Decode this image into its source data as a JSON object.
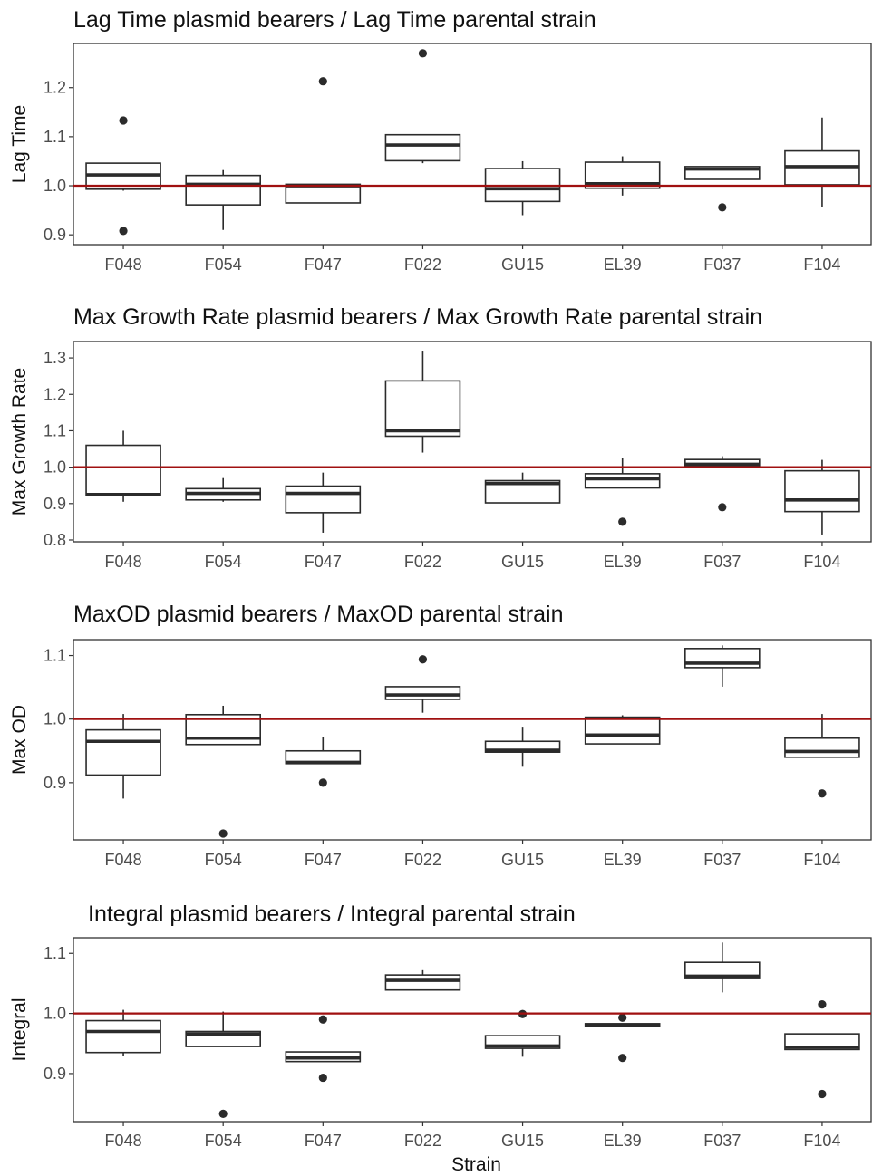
{
  "chart_data": [
    {
      "type": "box",
      "title": "Lag Time plasmid bearers / Lag Time parental strain",
      "ylabel": "Lag Time",
      "xlabel": "",
      "ylim": [
        0.88,
        1.29
      ],
      "yticks": [
        0.9,
        1.0,
        1.1,
        1.2
      ],
      "yticklabels": [
        "0.9",
        "1.0",
        "1.1",
        "1.2"
      ],
      "reference_line": 1.0,
      "categories": [
        "F048",
        "F054",
        "F047",
        "F022",
        "GU15",
        "EL39",
        "F037",
        "F104"
      ],
      "boxes": [
        {
          "wlo": 0.99,
          "q1": 0.993,
          "med": 1.022,
          "q3": 1.046,
          "whi": 1.046,
          "outliers": [
            1.133,
            0.908
          ]
        },
        {
          "wlo": 0.91,
          "q1": 0.961,
          "med": 1.003,
          "q3": 1.021,
          "whi": 1.032,
          "outliers": []
        },
        {
          "wlo": 0.965,
          "q1": 0.965,
          "med": 1.0,
          "q3": 1.003,
          "whi": 1.003,
          "outliers": [
            1.213
          ]
        },
        {
          "wlo": 1.046,
          "q1": 1.051,
          "med": 1.083,
          "q3": 1.104,
          "whi": 1.104,
          "outliers": [
            1.27
          ]
        },
        {
          "wlo": 0.94,
          "q1": 0.968,
          "med": 0.994,
          "q3": 1.035,
          "whi": 1.05,
          "outliers": []
        },
        {
          "wlo": 0.98,
          "q1": 0.995,
          "med": 1.004,
          "q3": 1.048,
          "whi": 1.06,
          "outliers": []
        },
        {
          "wlo": 1.013,
          "q1": 1.013,
          "med": 1.034,
          "q3": 1.039,
          "whi": 1.039,
          "outliers": [
            0.956
          ]
        },
        {
          "wlo": 0.957,
          "q1": 1.002,
          "med": 1.039,
          "q3": 1.071,
          "whi": 1.139,
          "outliers": []
        }
      ]
    },
    {
      "type": "box",
      "title": "Max Growth Rate plasmid bearers / Max Growth Rate parental strain",
      "ylabel": "Max Growth Rate",
      "xlabel": "",
      "ylim": [
        0.795,
        1.345
      ],
      "yticks": [
        0.8,
        0.9,
        1.0,
        1.1,
        1.2,
        1.3
      ],
      "yticklabels": [
        "0.8",
        "0.9",
        "1.0",
        "1.1",
        "1.2",
        "1.3"
      ],
      "reference_line": 1.0,
      "categories": [
        "F048",
        "F054",
        "F047",
        "F022",
        "GU15",
        "EL39",
        "F037",
        "F104"
      ],
      "boxes": [
        {
          "wlo": 0.905,
          "q1": 0.922,
          "med": 0.925,
          "q3": 1.06,
          "whi": 1.1,
          "outliers": []
        },
        {
          "wlo": 0.905,
          "q1": 0.91,
          "med": 0.928,
          "q3": 0.941,
          "whi": 0.97,
          "outliers": []
        },
        {
          "wlo": 0.82,
          "q1": 0.875,
          "med": 0.928,
          "q3": 0.948,
          "whi": 0.985,
          "outliers": []
        },
        {
          "wlo": 1.04,
          "q1": 1.085,
          "med": 1.1,
          "q3": 1.237,
          "whi": 1.32,
          "outliers": []
        },
        {
          "wlo": 0.902,
          "q1": 0.902,
          "med": 0.955,
          "q3": 0.963,
          "whi": 0.985,
          "outliers": []
        },
        {
          "wlo": 0.943,
          "q1": 0.943,
          "med": 0.968,
          "q3": 0.982,
          "whi": 1.025,
          "outliers": [
            0.85
          ]
        },
        {
          "wlo": 1.0,
          "q1": 1.002,
          "med": 1.008,
          "q3": 1.021,
          "whi": 1.03,
          "outliers": [
            0.89
          ]
        },
        {
          "wlo": 0.815,
          "q1": 0.878,
          "med": 0.91,
          "q3": 0.99,
          "whi": 1.02,
          "outliers": []
        }
      ]
    },
    {
      "type": "box",
      "title": "MaxOD plasmid bearers / MaxOD parental strain",
      "ylabel": "Max OD",
      "xlabel": "",
      "ylim": [
        0.81,
        1.125
      ],
      "yticks": [
        0.9,
        1.0,
        1.1
      ],
      "yticklabels": [
        "0.9",
        "1.0",
        "1.1"
      ],
      "reference_line": 1.0,
      "categories": [
        "F048",
        "F054",
        "F047",
        "F022",
        "GU15",
        "EL39",
        "F037",
        "F104"
      ],
      "boxes": [
        {
          "wlo": 0.875,
          "q1": 0.912,
          "med": 0.965,
          "q3": 0.983,
          "whi": 1.008,
          "outliers": []
        },
        {
          "wlo": 0.96,
          "q1": 0.96,
          "med": 0.97,
          "q3": 1.007,
          "whi": 1.021,
          "outliers": [
            0.82
          ]
        },
        {
          "wlo": 0.93,
          "q1": 0.93,
          "med": 0.932,
          "q3": 0.95,
          "whi": 0.972,
          "outliers": [
            0.9
          ]
        },
        {
          "wlo": 1.01,
          "q1": 1.031,
          "med": 1.038,
          "q3": 1.051,
          "whi": 1.051,
          "outliers": [
            1.094
          ]
        },
        {
          "wlo": 0.925,
          "q1": 0.948,
          "med": 0.951,
          "q3": 0.965,
          "whi": 0.988,
          "outliers": []
        },
        {
          "wlo": 0.961,
          "q1": 0.961,
          "med": 0.975,
          "q3": 1.003,
          "whi": 1.006,
          "outliers": []
        },
        {
          "wlo": 1.051,
          "q1": 1.081,
          "med": 1.088,
          "q3": 1.111,
          "whi": 1.116,
          "outliers": []
        },
        {
          "wlo": 0.94,
          "q1": 0.94,
          "med": 0.949,
          "q3": 0.97,
          "whi": 1.008,
          "outliers": [
            0.883
          ]
        }
      ]
    },
    {
      "type": "box",
      "title": "Integral plasmid bearers / Integral parental strain",
      "ylabel": "Integral",
      "xlabel": "Strain",
      "ylim": [
        0.82,
        1.126
      ],
      "yticks": [
        0.9,
        1.0,
        1.1
      ],
      "yticklabels": [
        "0.9",
        "1.0",
        "1.1"
      ],
      "reference_line": 1.0,
      "categories": [
        "F048",
        "F054",
        "F047",
        "F022",
        "GU15",
        "EL39",
        "F037",
        "F104"
      ],
      "boxes": [
        {
          "wlo": 0.93,
          "q1": 0.935,
          "med": 0.97,
          "q3": 0.988,
          "whi": 1.006,
          "outliers": []
        },
        {
          "wlo": 0.945,
          "q1": 0.945,
          "med": 0.966,
          "q3": 0.97,
          "whi": 1.003,
          "outliers": [
            0.833
          ]
        },
        {
          "wlo": 0.92,
          "q1": 0.92,
          "med": 0.926,
          "q3": 0.936,
          "whi": 0.936,
          "outliers": [
            0.99,
            0.893
          ]
        },
        {
          "wlo": 1.039,
          "q1": 1.039,
          "med": 1.055,
          "q3": 1.064,
          "whi": 1.072,
          "outliers": []
        },
        {
          "wlo": 0.928,
          "q1": 0.942,
          "med": 0.946,
          "q3": 0.963,
          "whi": 0.963,
          "outliers": [
            0.999
          ]
        },
        {
          "wlo": 0.978,
          "q1": 0.978,
          "med": 0.98,
          "q3": 0.983,
          "whi": 0.983,
          "outliers": [
            0.993,
            0.926
          ]
        },
        {
          "wlo": 1.035,
          "q1": 1.058,
          "med": 1.062,
          "q3": 1.085,
          "whi": 1.118,
          "outliers": []
        },
        {
          "wlo": 0.94,
          "q1": 0.94,
          "med": 0.944,
          "q3": 0.966,
          "whi": 0.966,
          "outliers": [
            1.015,
            0.866
          ]
        }
      ]
    }
  ],
  "colors": {
    "reference_line": "#a01010",
    "box_stroke": "#2b2b2b",
    "box_fill": "#ffffff",
    "outlier": "#2b2b2b",
    "panel_border": "#333333",
    "tick_text": "#4d4d4d",
    "text": "#111111"
  }
}
